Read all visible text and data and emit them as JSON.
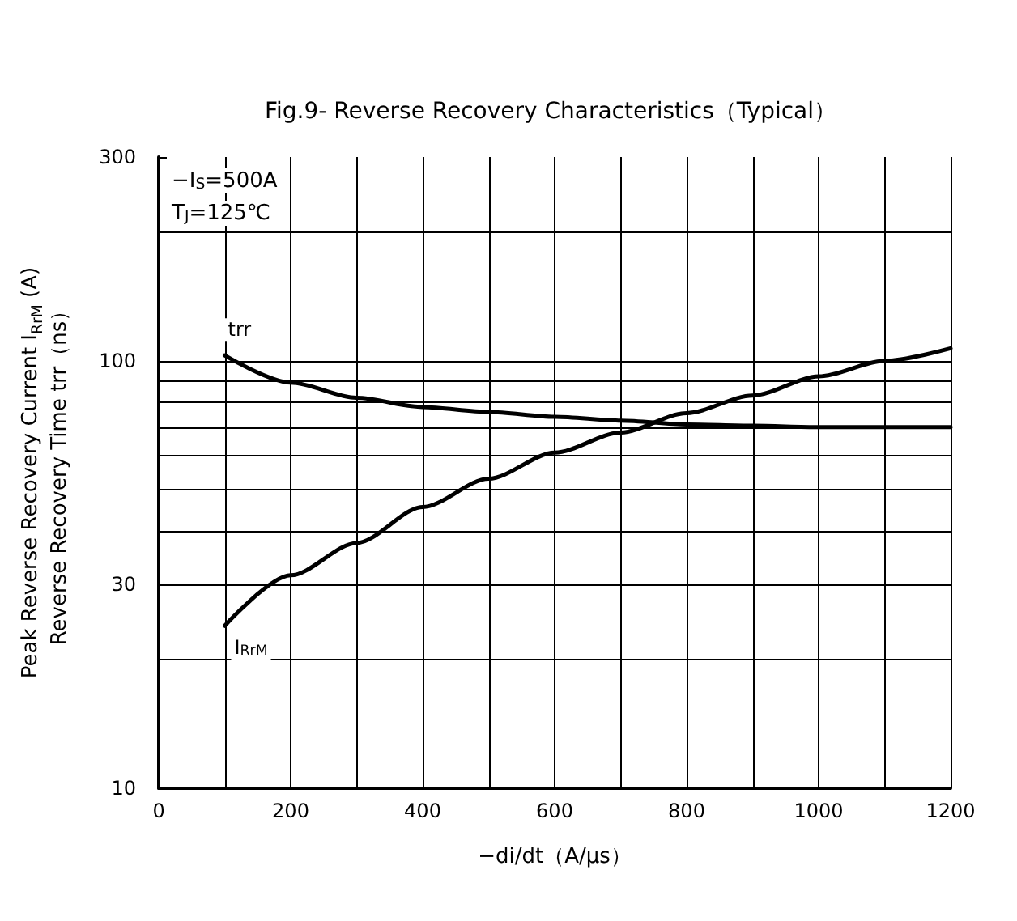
{
  "chart_data": {
    "type": "line",
    "title": "Fig.9- Reverse Recovery Characteristics（Typical）",
    "xlabel": "−di/dt（A/μs）",
    "ylabel": "Peak Reverse Recovery Current I$_{RrM}$ (A)\nReverse Recovery Time trr（ns）",
    "annotations": [
      "−I$_{S}$=500A",
      "T$_{J}$=125℃"
    ],
    "series": [
      {
        "name": "trr",
        "color": "#000000",
        "x": [
          100,
          200,
          300,
          400,
          500,
          600,
          700,
          800,
          900,
          1000,
          1100,
          1200
        ],
        "values": [
          103,
          89,
          82,
          78,
          76,
          74,
          72.5,
          71,
          70.5,
          70,
          70,
          70
        ]
      },
      {
        "name": "I$_{RrM}$",
        "color": "#000000",
        "x": [
          100,
          200,
          300,
          400,
          500,
          600,
          700,
          800,
          900,
          1000,
          1100,
          1200
        ],
        "values": [
          24,
          31.5,
          37.5,
          45.5,
          53,
          61,
          68,
          75.5,
          83,
          92,
          100,
          107
        ]
      }
    ],
    "xlim": [
      0,
      1200
    ],
    "xticks": [
      0,
      {
        "value": 100,
        "label": null
      },
      200,
      {
        "value": 300,
        "label": null
      },
      400,
      {
        "value": 500,
        "label": null
      },
      600,
      {
        "value": 700,
        "label": null
      },
      800,
      {
        "value": 900,
        "label": null
      },
      1000,
      {
        "value": 1100,
        "label": null
      },
      1200
    ],
    "ylim": [
      10,
      300
    ],
    "yticks": [
      10,
      30,
      100,
      300
    ],
    "log": "y",
    "grid": true,
    "legend": false,
    "marker": "none",
    "line_style": "solid"
  }
}
